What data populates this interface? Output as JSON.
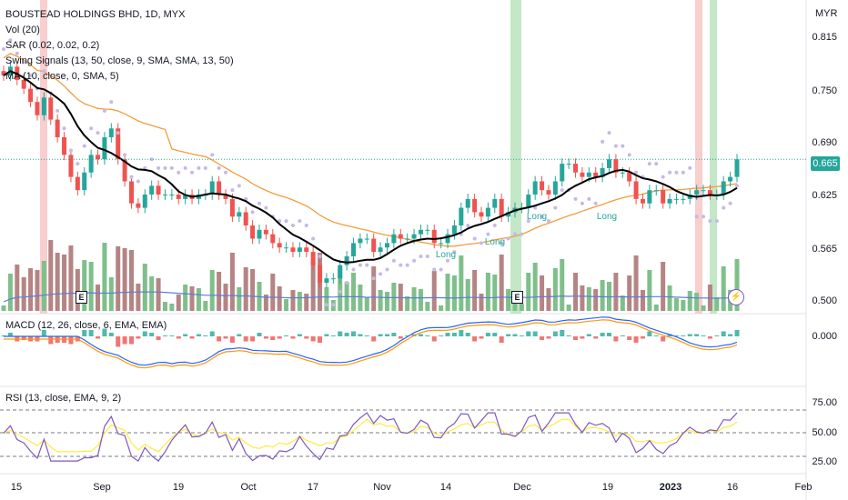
{
  "header": {
    "symbol_line": "BOUSTEAD HOLDINGS BHD, 1D, MYX",
    "indicators": [
      "Vol (20)",
      "SAR (0.02, 0.02, 0.2)",
      "Swing Signals (13, 50, close, 9, SMA, SMA, 13, 50)",
      "MA (10, close, 0, SMA, 5)"
    ]
  },
  "price_axis": {
    "unit": "MYR",
    "ticks": [
      "0.815",
      "0.750",
      "0.690",
      "0.625",
      "0.565",
      "0.500"
    ],
    "last_price": "0.665"
  },
  "macd": {
    "label": "MACD (12, 26, close, 6, EMA, EMA)",
    "tick": "0.000"
  },
  "rsi": {
    "label": "RSI (13, close, EMA, 9, 2)",
    "ticks": [
      "75.00",
      "50.00",
      "25.00"
    ]
  },
  "time_axis": {
    "ticks": [
      "15",
      "Sep",
      "19",
      "Oct",
      "17",
      "Nov",
      "14",
      "Dec",
      "19",
      "2023",
      "16",
      "Feb"
    ]
  },
  "events": [
    "E",
    "E"
  ],
  "signals": [
    "Long",
    "Long",
    "Long",
    "Long"
  ],
  "colors": {
    "up": "#26a69a",
    "down": "#ef5350",
    "vol_up": "#7fbf8a",
    "vol_down": "#b58484",
    "ma": "#000000",
    "sma50": "#f59c3c",
    "sar": "#c7b8e8",
    "vol_ma": "#5b7fd6",
    "macd_line": "#2962ff",
    "signal_line": "#ff9800",
    "rsi_line": "#7e57c2",
    "rsi_ma": "#ffeb3b",
    "green_band": "#b9e3bd",
    "red_band": "#f7c6c5"
  },
  "chart_data": {
    "type": "candlestick",
    "title": "BOUSTEAD HOLDINGS BHD, 1D, MYX",
    "ylim": [
      0.49,
      0.825
    ],
    "close": [
      0.76,
      0.77,
      0.755,
      0.745,
      0.73,
      0.715,
      0.735,
      0.71,
      0.69,
      0.67,
      0.645,
      0.63,
      0.65,
      0.67,
      0.665,
      0.69,
      0.7,
      0.665,
      0.64,
      0.615,
      0.61,
      0.625,
      0.635,
      0.625,
      0.625,
      0.625,
      0.62,
      0.625,
      0.62,
      0.625,
      0.625,
      0.64,
      0.625,
      0.62,
      0.6,
      0.605,
      0.59,
      0.575,
      0.585,
      0.58,
      0.57,
      0.565,
      0.565,
      0.56,
      0.565,
      0.56,
      0.545,
      0.525,
      0.53,
      0.53,
      0.545,
      0.555,
      0.57,
      0.575,
      0.575,
      0.56,
      0.565,
      0.57,
      0.58,
      0.575,
      0.575,
      0.58,
      0.585,
      0.585,
      0.57,
      0.57,
      0.58,
      0.59,
      0.61,
      0.62,
      0.605,
      0.6,
      0.61,
      0.62,
      0.6,
      0.605,
      0.61,
      0.61,
      0.625,
      0.64,
      0.63,
      0.625,
      0.64,
      0.66,
      0.66,
      0.65,
      0.645,
      0.65,
      0.645,
      0.655,
      0.665,
      0.65,
      0.65,
      0.64,
      0.62,
      0.615,
      0.63,
      0.63,
      0.615,
      0.62,
      0.62,
      0.62,
      0.625,
      0.63,
      0.63,
      0.625,
      0.625,
      0.64,
      0.645,
      0.665
    ]
  }
}
